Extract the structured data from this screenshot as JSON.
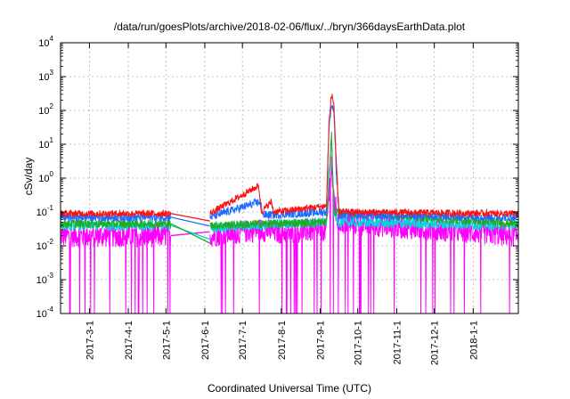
{
  "chart_data": {
    "type": "line",
    "title": "/data/run/goesPlots/archive/2018-02-06/flux/../bryn/366daysEarthData.plot",
    "xlabel": "Coordinated Universal Time (UTC)",
    "ylabel": "cSv/day",
    "yscale": "log",
    "ylim": [
      0.0001,
      10000
    ],
    "xlim": [
      "2017-02-06",
      "2018-02-06"
    ],
    "grid": true,
    "x_ticks": [
      "2017-3-1",
      "2017-4-1",
      "2017-5-1",
      "2017-6-1",
      "2017-7-1",
      "2017-8-1",
      "2017-9-1",
      "2017-10-1",
      "2017-11-1",
      "2017-12-1",
      "2018-1-1"
    ],
    "y_ticks": [
      {
        "value": 0.0001,
        "base": "10",
        "exp": "-4"
      },
      {
        "value": 0.001,
        "base": "10",
        "exp": "-3"
      },
      {
        "value": 0.01,
        "base": "10",
        "exp": "-2"
      },
      {
        "value": 0.1,
        "base": "10",
        "exp": "-1"
      },
      {
        "value": 1,
        "base": "10",
        "exp": "0"
      },
      {
        "value": 10,
        "base": "10",
        "exp": "1"
      },
      {
        "value": 100,
        "base": "10",
        "exp": "2"
      },
      {
        "value": 1000,
        "base": "10",
        "exp": "3"
      },
      {
        "value": 10000,
        "base": "10",
        "exp": "4"
      }
    ],
    "gap": {
      "start": "2017-05-05",
      "end": "2017-06-05"
    },
    "series": [
      {
        "color": "#ff00ff",
        "baseline": 0.02,
        "noise": 0.7,
        "spike_low": 0.005,
        "points": [
          [
            "2017-02-06",
            0.02
          ],
          [
            "2017-05-05",
            0.02
          ],
          [
            "2017-06-05",
            0.02
          ],
          [
            "2017-07-15",
            0.03
          ],
          [
            "2017-08-01",
            0.025
          ],
          [
            "2017-09-06",
            0.03
          ],
          [
            "2017-09-10",
            3.0
          ],
          [
            "2017-09-11",
            0.5
          ],
          [
            "2017-09-15",
            0.05
          ],
          [
            "2018-02-06",
            0.02
          ]
        ]
      },
      {
        "color": "#00d8d8",
        "baseline": 0.04,
        "noise": 0.3,
        "spike_low": null,
        "points": [
          [
            "2017-02-06",
            0.04
          ],
          [
            "2017-05-05",
            0.04
          ],
          [
            "2017-06-05",
            0.035
          ],
          [
            "2017-09-06",
            0.05
          ],
          [
            "2017-09-10",
            15
          ],
          [
            "2017-09-12",
            0.1
          ],
          [
            "2017-09-15",
            0.05
          ],
          [
            "2018-02-06",
            0.04
          ]
        ]
      },
      {
        "color": "#22aa22",
        "baseline": 0.045,
        "noise": 0.25,
        "spike_low": null,
        "points": [
          [
            "2017-02-06",
            0.045
          ],
          [
            "2017-05-05",
            0.045
          ],
          [
            "2017-06-05",
            0.04
          ],
          [
            "2017-09-06",
            0.05
          ],
          [
            "2017-09-10",
            20
          ],
          [
            "2017-09-12",
            0.1
          ],
          [
            "2018-02-06",
            0.045
          ]
        ]
      },
      {
        "color": "#1e6cff",
        "baseline": 0.07,
        "noise": 0.25,
        "spike_low": null,
        "points": [
          [
            "2017-02-06",
            0.07
          ],
          [
            "2017-05-05",
            0.07
          ],
          [
            "2017-06-05",
            0.07
          ],
          [
            "2017-07-15",
            0.2
          ],
          [
            "2017-07-18",
            0.08
          ],
          [
            "2017-09-06",
            0.1
          ],
          [
            "2017-09-08",
            30
          ],
          [
            "2017-09-10",
            150
          ],
          [
            "2017-09-12",
            100
          ],
          [
            "2017-09-14",
            1
          ],
          [
            "2017-09-16",
            0.08
          ],
          [
            "2018-02-06",
            0.07
          ]
        ]
      },
      {
        "color": "#ff1111",
        "baseline": 0.09,
        "noise": 0.2,
        "spike_low": null,
        "points": [
          [
            "2017-02-06",
            0.09
          ],
          [
            "2017-05-05",
            0.09
          ],
          [
            "2017-06-05",
            0.09
          ],
          [
            "2017-07-14",
            0.6
          ],
          [
            "2017-07-16",
            0.1
          ],
          [
            "2017-07-24",
            0.2
          ],
          [
            "2017-07-26",
            0.1
          ],
          [
            "2017-09-06",
            0.15
          ],
          [
            "2017-09-08",
            40
          ],
          [
            "2017-09-10",
            300
          ],
          [
            "2017-09-12",
            150
          ],
          [
            "2017-09-14",
            2
          ],
          [
            "2017-09-16",
            0.1
          ],
          [
            "2018-02-06",
            0.09
          ]
        ]
      }
    ]
  }
}
